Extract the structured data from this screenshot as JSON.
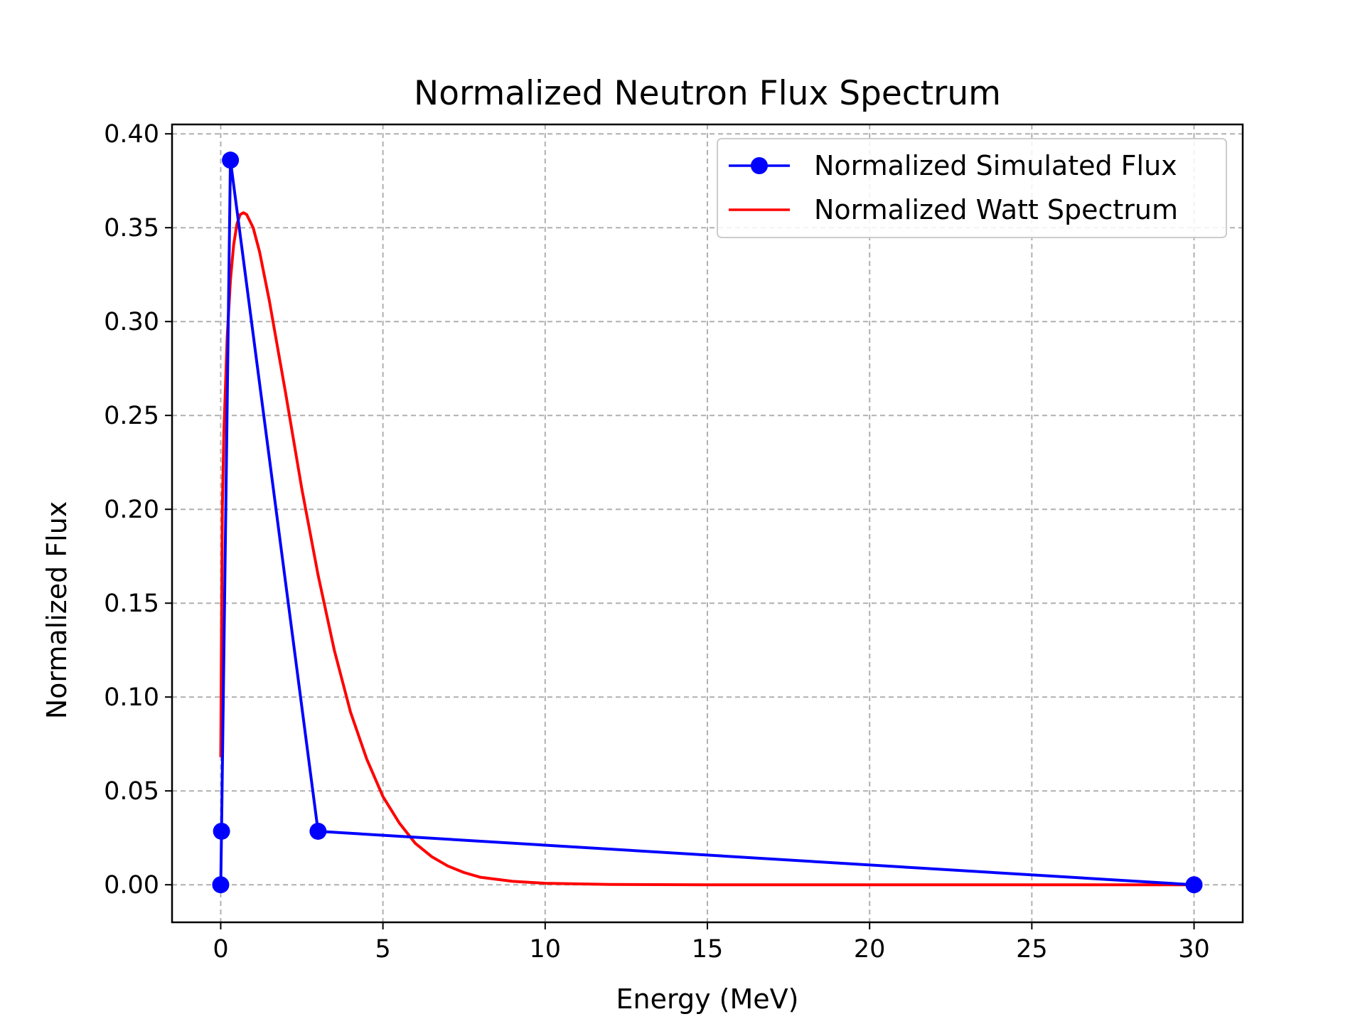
{
  "chart_data": {
    "type": "line",
    "title": "Normalized Neutron Flux Spectrum",
    "xlabel": "Energy (MeV)",
    "ylabel": "Normalized Flux",
    "xlim": [
      -1.5,
      31.5
    ],
    "ylim": [
      -0.02,
      0.405
    ],
    "xticks": [
      0,
      5,
      10,
      15,
      20,
      25,
      30
    ],
    "xtick_labels": [
      "0",
      "5",
      "10",
      "15",
      "20",
      "25",
      "30"
    ],
    "yticks": [
      0.0,
      0.05,
      0.1,
      0.15,
      0.2,
      0.25,
      0.3,
      0.35,
      0.4
    ],
    "ytick_labels": [
      "0.00",
      "0.05",
      "0.10",
      "0.15",
      "0.20",
      "0.25",
      "0.30",
      "0.35",
      "0.40"
    ],
    "grid": true,
    "legend_position": "top-right",
    "series": [
      {
        "name": "Normalized Simulated Flux",
        "color": "#0000ff",
        "marker": "circle",
        "x": [
          0.0,
          0.025,
          0.3,
          3.0,
          30.0
        ],
        "y": [
          0.0,
          0.0285,
          0.386,
          0.0285,
          0.0
        ]
      },
      {
        "name": "Normalized Watt Spectrum",
        "color": "#ff0000",
        "marker": "none",
        "x": [
          0.0,
          0.05,
          0.1,
          0.2,
          0.3,
          0.4,
          0.5,
          0.6,
          0.7,
          0.8,
          1.0,
          1.2,
          1.5,
          2.0,
          2.5,
          3.0,
          3.5,
          4.0,
          4.5,
          5.0,
          5.5,
          6.0,
          6.5,
          7.0,
          7.5,
          8.0,
          9.0,
          10.0,
          12.0,
          15.0,
          20.0,
          25.0,
          30.0
        ],
        "y": [
          0.068,
          0.2,
          0.242,
          0.292,
          0.322,
          0.341,
          0.352,
          0.357,
          0.358,
          0.357,
          0.35,
          0.337,
          0.311,
          0.262,
          0.211,
          0.165,
          0.125,
          0.092,
          0.067,
          0.047,
          0.033,
          0.022,
          0.015,
          0.01,
          0.0065,
          0.004,
          0.0018,
          0.0008,
          0.0002,
          0.0,
          0.0,
          0.0,
          0.0
        ]
      }
    ]
  }
}
